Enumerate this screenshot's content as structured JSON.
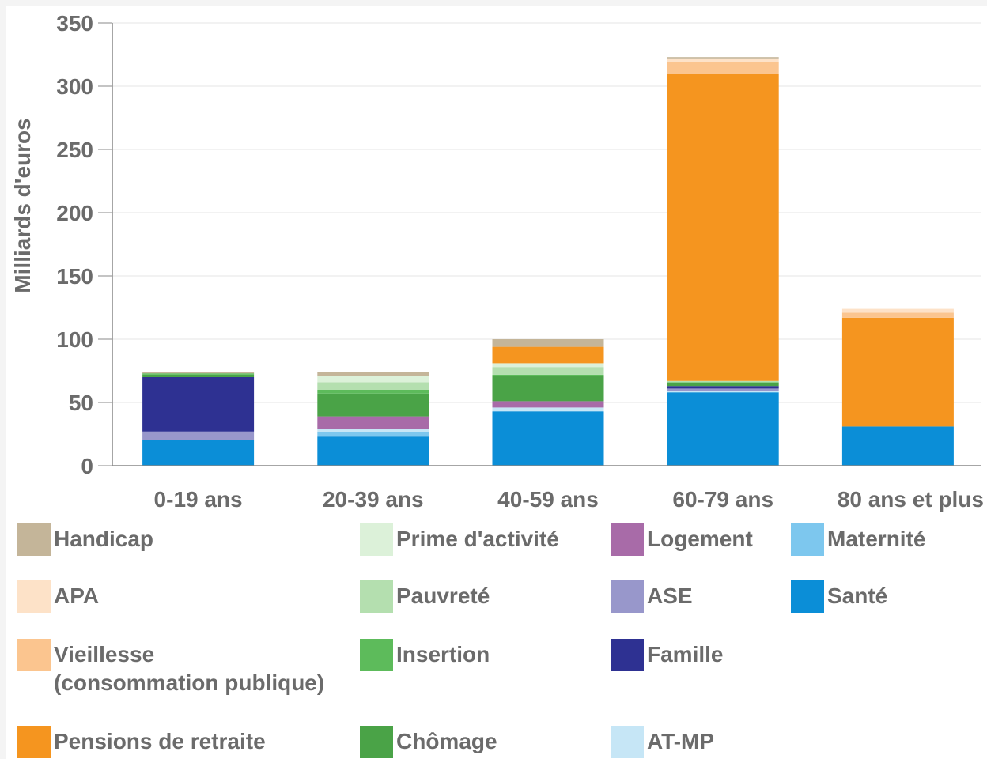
{
  "chart_data": {
    "type": "bar",
    "stacked": true,
    "ylabel": "Milliards d'euros",
    "ylim": [
      0,
      350
    ],
    "yticks": [
      0,
      50,
      100,
      150,
      200,
      250,
      300,
      350
    ],
    "grid": true,
    "legend_position": "bottom",
    "categories": [
      "0-19 ans",
      "20-39 ans",
      "40-59 ans",
      "60-79 ans",
      "80 ans et plus"
    ],
    "series": [
      {
        "name": "Santé",
        "color": "#0b8ed7",
        "values": [
          20,
          23,
          43,
          58,
          31
        ]
      },
      {
        "name": "Maternité",
        "color": "#7dc7ee",
        "values": [
          0,
          4,
          0,
          0,
          0
        ]
      },
      {
        "name": "AT-MP",
        "color": "#c6e6f6",
        "values": [
          0,
          2,
          3,
          1,
          0
        ]
      },
      {
        "name": "Logement",
        "color": "#a86ba8",
        "values": [
          0,
          10,
          5,
          0,
          0
        ]
      },
      {
        "name": "ASE",
        "color": "#9897cb",
        "values": [
          7,
          0,
          0,
          2,
          0
        ]
      },
      {
        "name": "Famille",
        "color": "#2e3192",
        "values": [
          43,
          0,
          0,
          2,
          0
        ]
      },
      {
        "name": "Chômage",
        "color": "#4aa347",
        "values": [
          2,
          18,
          20,
          2,
          0
        ]
      },
      {
        "name": "Insertion",
        "color": "#5dbb5b",
        "values": [
          1,
          3,
          1,
          1,
          0
        ]
      },
      {
        "name": "Pauvreté",
        "color": "#b4dfaf",
        "values": [
          0,
          6,
          6,
          1,
          0
        ]
      },
      {
        "name": "Prime d'activité",
        "color": "#dcf1d9",
        "values": [
          0,
          5,
          3,
          0,
          0
        ]
      },
      {
        "name": "Pensions de retraite",
        "color": "#f5951f",
        "values": [
          0,
          0,
          13,
          243,
          86
        ]
      },
      {
        "name": "Vieillesse (consommation publique)",
        "color": "#fbc58f",
        "values": [
          0,
          0,
          0,
          9,
          4
        ]
      },
      {
        "name": "APA",
        "color": "#fde2c8",
        "values": [
          0,
          0,
          0,
          3,
          3
        ]
      },
      {
        "name": "Handicap",
        "color": "#c4b599",
        "values": [
          1,
          3,
          6,
          1,
          0
        ]
      }
    ]
  },
  "legend": [
    {
      "name": "Handicap",
      "color": "#c4b599"
    },
    {
      "name": "Prime d'activité",
      "color": "#dcf1d9"
    },
    {
      "name": "Logement",
      "color": "#a86ba8"
    },
    {
      "name": "Maternité",
      "color": "#7dc7ee"
    },
    {
      "name": "APA",
      "color": "#fde2c8"
    },
    {
      "name": "Pauvreté",
      "color": "#b4dfaf"
    },
    {
      "name": "ASE",
      "color": "#9897cb"
    },
    {
      "name": "Santé",
      "color": "#0b8ed7"
    },
    {
      "name": "Vieillesse",
      "name_line2": "(consommation publique)",
      "color": "#fbc58f"
    },
    {
      "name": "Insertion",
      "color": "#5dbb5b"
    },
    {
      "name": "Famille",
      "color": "#2e3192"
    },
    {
      "name": "Pensions de retraite",
      "color": "#f5951f"
    },
    {
      "name": "Chômage",
      "color": "#4aa347"
    },
    {
      "name": "AT-MP",
      "color": "#c6e6f6"
    }
  ]
}
